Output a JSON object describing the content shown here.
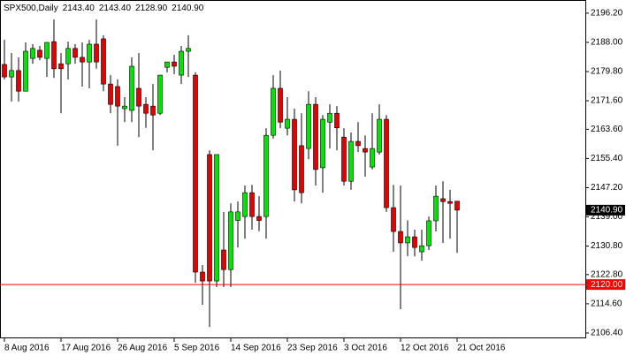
{
  "chart_data": {
    "type": "candlestick",
    "header": {
      "symbol": "SPX500,Daily",
      "ohlc": [
        "2143.40",
        "2143.40",
        "2128.90",
        "2140.90"
      ]
    },
    "categories": [
      "8 Aug 2016",
      null,
      null,
      null,
      null,
      null,
      null,
      null,
      "17 Aug 2016",
      null,
      null,
      null,
      null,
      null,
      null,
      null,
      "26 Aug 2016",
      null,
      null,
      null,
      null,
      null,
      null,
      null,
      "5 Sep 2016",
      null,
      null,
      null,
      null,
      null,
      null,
      null,
      "14 Sep 2016",
      null,
      null,
      null,
      null,
      null,
      null,
      null,
      "23 Sep 2016",
      null,
      null,
      null,
      null,
      null,
      null,
      null,
      "3 Oct 2016",
      null,
      null,
      null,
      null,
      null,
      null,
      null,
      "12 Oct 2016",
      null,
      null,
      null,
      null,
      null,
      null,
      null,
      "21 Oct 2016"
    ],
    "open": [
      2181.8,
      2178.3,
      2180.1,
      2174.3,
      2183.5,
      2185.8,
      2183.5,
      2188.2,
      2182.0,
      2182.0,
      2186.3,
      2183.8,
      2182.5,
      2187.5,
      2189.0,
      2176.3,
      2175.6,
      2169.4,
      2168.9,
      2175.1,
      2170.6,
      2170.1,
      2168.1,
      2181.0,
      2182.5,
      2178.8,
      2185.5,
      2178.8,
      2123.5,
      2156.5,
      2121.0,
      2129.7,
      2124.2,
      2138.0,
      2139.1,
      2145.8,
      2139.1,
      2139.1,
      2161.9,
      2175.1,
      2163.9,
      2166.4,
      2159.0,
      2158.2,
      2170.6,
      2152.8,
      2165.6,
      2168.1,
      2161.4,
      2149.0,
      2160.2,
      2158.2,
      2153.0,
      2157.2,
      2166.4,
      2141.6,
      2134.9,
      2131.7,
      2133.4,
      2129.2,
      2130.9,
      2137.9,
      2144.1,
      2143.3,
      2143.4
    ],
    "high": [
      2188.7,
      2185.0,
      2183.8,
      2188.0,
      2187.5,
      2187.0,
      2188.0,
      2194.4,
      2185.0,
      2188.2,
      2187.5,
      2188.0,
      2188.7,
      2194.4,
      2190.0,
      2178.8,
      2177.6,
      2172.6,
      2183.8,
      2185.0,
      2172.6,
      2176.3,
      2178.8,
      2182.5,
      2184.5,
      2187.0,
      2190.0,
      2179.6,
      2125.5,
      2157.7,
      2156.5,
      2140.4,
      2142.8,
      2143.3,
      2147.8,
      2148.0,
      2144.8,
      2163.9,
      2178.8,
      2180.1,
      2172.6,
      2169.4,
      2168.1,
      2174.3,
      2172.6,
      2167.6,
      2170.6,
      2170.1,
      2163.9,
      2162.7,
      2165.6,
      2161.9,
      2168.1,
      2170.6,
      2167.6,
      2148.0,
      2147.8,
      2138.0,
      2135.4,
      2135.4,
      2139.1,
      2147.8,
      2149.0,
      2146.6,
      2143.4
    ],
    "low": [
      2177.6,
      2171.4,
      2171.4,
      2174.3,
      2182.0,
      2183.0,
      2178.3,
      2178.0,
      2168.1,
      2177.6,
      2182.0,
      2175.6,
      2175.1,
      2180.6,
      2174.3,
      2168.1,
      2159.0,
      2165.6,
      2165.6,
      2161.4,
      2164.0,
      2157.7,
      2167.6,
      2179.6,
      2179.1,
      2176.3,
      2178.3,
      2120.5,
      2114.3,
      2108.1,
      2119.3,
      2119.3,
      2119.3,
      2130.4,
      2132.9,
      2135.4,
      2135.0,
      2132.9,
      2161.0,
      2163.9,
      2161.9,
      2143.3,
      2142.8,
      2155.2,
      2147.8,
      2145.8,
      2158.2,
      2157.7,
      2147.8,
      2146.6,
      2157.2,
      2150.3,
      2152.3,
      2156.5,
      2140.4,
      2129.2,
      2113.1,
      2128.0,
      2127.9,
      2126.7,
      2129.7,
      2134.9,
      2131.7,
      2132.9,
      2128.9
    ],
    "close": [
      2178.3,
      2180.1,
      2174.3,
      2185.5,
      2186.3,
      2183.8,
      2188.0,
      2180.6,
      2180.6,
      2186.3,
      2183.8,
      2182.5,
      2187.5,
      2182.5,
      2176.3,
      2170.6,
      2170.1,
      2170.1,
      2181.3,
      2170.1,
      2168.1,
      2167.6,
      2178.8,
      2182.5,
      2181.3,
      2185.5,
      2186.3,
      2123.5,
      2121.0,
      2121.0,
      2156.5,
      2124.2,
      2140.4,
      2140.4,
      2145.8,
      2139.1,
      2138.0,
      2161.9,
      2175.1,
      2165.6,
      2166.4,
      2146.6,
      2145.8,
      2170.6,
      2152.3,
      2166.4,
      2168.1,
      2164.0,
      2149.0,
      2160.2,
      2159.0,
      2157.2,
      2158.2,
      2166.4,
      2141.6,
      2134.9,
      2131.7,
      2133.4,
      2130.4,
      2130.9,
      2137.9,
      2144.8,
      2143.3,
      2142.8,
      2140.9
    ],
    "up_color": "#00e600",
    "down_color": "#e60000",
    "ylim": [
      2104.9,
      2199.9
    ],
    "yticks": [
      {
        "value": 2196.2,
        "label": "2196.20"
      },
      {
        "value": 2188.0,
        "label": "2188.00"
      },
      {
        "value": 2179.8,
        "label": "2179.80"
      },
      {
        "value": 2171.6,
        "label": "2171.60"
      },
      {
        "value": 2163.6,
        "label": "2163.60"
      },
      {
        "value": 2155.4,
        "label": "2155.40"
      },
      {
        "value": 2147.2,
        "label": "2147.20"
      },
      {
        "value": 2139.0,
        "label": "2139.00"
      },
      {
        "value": 2130.8,
        "label": "2130.80"
      },
      {
        "value": 2122.8,
        "label": "2122.80"
      },
      {
        "value": 2114.6,
        "label": "2114.60"
      },
      {
        "value": 2106.4,
        "label": "2106.40"
      }
    ],
    "hline": {
      "value": 2120,
      "label": "2120.00",
      "color": "#ff0000"
    },
    "last_price": {
      "value": 2140.9,
      "label": "2140.90"
    }
  }
}
